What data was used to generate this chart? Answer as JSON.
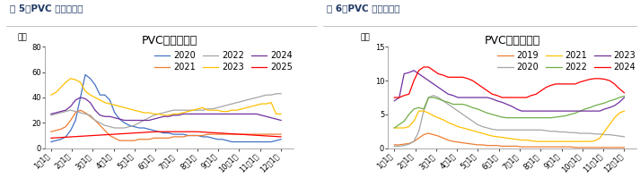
{
  "fig5_title": "PVC电石法库存",
  "fig5_header": "图 5：PVC 电石法库存",
  "fig5_ylabel": "万吨",
  "fig5_ylim": [
    0,
    80
  ],
  "fig5_yticks": [
    0,
    20,
    40,
    60,
    80
  ],
  "fig5_series": {
    "2020": {
      "color": "#4472C4",
      "data": [
        5,
        6,
        7,
        9,
        14,
        22,
        40,
        58,
        55,
        50,
        42,
        42,
        38,
        28,
        23,
        20,
        18,
        17,
        16,
        16,
        15,
        14,
        13,
        12,
        12,
        11,
        11,
        11,
        10,
        10,
        10,
        9,
        9,
        8,
        7,
        7,
        6,
        5,
        5,
        5,
        5,
        5,
        5,
        5,
        5,
        5,
        6,
        7
      ]
    },
    "2021": {
      "color": "#ED7D31",
      "data": [
        13,
        14,
        15,
        17,
        22,
        28,
        30,
        28,
        25,
        22,
        18,
        14,
        10,
        8,
        6,
        6,
        6,
        6,
        7,
        7,
        7,
        8,
        8,
        8,
        8,
        9,
        9,
        9,
        10,
        10,
        10,
        10,
        11,
        11,
        11,
        11,
        11,
        11,
        11,
        11,
        11,
        11,
        11,
        11,
        11,
        11,
        11,
        11
      ]
    },
    "2022": {
      "color": "#A5A5A5",
      "data": [
        26,
        27,
        28,
        29,
        30,
        29,
        28,
        27,
        26,
        22,
        20,
        18,
        17,
        16,
        16,
        16,
        17,
        18,
        20,
        22,
        24,
        26,
        27,
        28,
        29,
        30,
        30,
        30,
        30,
        30,
        30,
        30,
        31,
        31,
        32,
        33,
        34,
        35,
        36,
        37,
        38,
        39,
        40,
        41,
        42,
        42,
        43,
        43
      ]
    },
    "2023": {
      "color": "#FFC000",
      "data": [
        42,
        44,
        48,
        52,
        55,
        54,
        52,
        45,
        42,
        40,
        38,
        36,
        35,
        34,
        33,
        32,
        31,
        30,
        29,
        28,
        28,
        27,
        27,
        26,
        26,
        27,
        27,
        28,
        29,
        30,
        31,
        32,
        30,
        30,
        30,
        29,
        29,
        30,
        30,
        31,
        32,
        33,
        34,
        35,
        35,
        36,
        27,
        27
      ]
    },
    "2024": {
      "color": "#7030A0",
      "data": [
        27,
        28,
        29,
        30,
        33,
        38,
        40,
        39,
        36,
        30,
        26,
        25,
        25,
        24,
        23,
        22,
        22,
        22,
        22,
        22,
        22,
        23,
        24,
        25,
        25,
        26,
        26,
        27,
        27,
        27,
        27,
        27,
        27,
        27,
        27,
        27,
        27,
        27,
        27,
        27,
        27,
        27,
        27,
        26,
        25,
        24,
        23,
        22
      ]
    },
    "2025": {
      "color": "#FF0000",
      "data": [
        8,
        9,
        10,
        11,
        12,
        13,
        13,
        13,
        12,
        11,
        10,
        9
      ]
    }
  },
  "fig6_title": "PVC乙烯法库存",
  "fig6_header": "图 6：PVC 乙烯法库存",
  "fig6_ylabel": "万吨",
  "fig6_ylim": [
    0,
    15
  ],
  "fig6_yticks": [
    0,
    5,
    10,
    15
  ],
  "fig6_series": {
    "2019": {
      "color": "#ED7D31",
      "data": [
        0.5,
        0.5,
        0.6,
        0.7,
        1.0,
        1.5,
        2.0,
        2.2,
        2.0,
        1.8,
        1.5,
        1.2,
        1.0,
        0.9,
        0.8,
        0.7,
        0.6,
        0.5,
        0.5,
        0.4,
        0.4,
        0.4,
        0.3,
        0.3,
        0.3,
        0.3,
        0.2,
        0.2,
        0.2,
        0.2,
        0.2,
        0.2,
        0.2,
        0.2,
        0.2,
        0.2,
        0.2,
        0.1,
        0.1,
        0.1,
        0.1,
        0.1,
        0.1,
        0.1,
        0.1,
        0.1,
        0.1,
        0.1
      ]
    },
    "2020": {
      "color": "#A5A5A5",
      "data": [
        0.3,
        0.3,
        0.4,
        0.6,
        1.0,
        2.5,
        5.5,
        7.5,
        7.8,
        7.5,
        7.0,
        6.5,
        6.0,
        5.5,
        5.0,
        4.5,
        4.0,
        3.5,
        3.2,
        3.0,
        2.8,
        2.7,
        2.7,
        2.7,
        2.7,
        2.7,
        2.7,
        2.7,
        2.7,
        2.7,
        2.7,
        2.6,
        2.5,
        2.5,
        2.4,
        2.4,
        2.3,
        2.3,
        2.2,
        2.2,
        2.2,
        2.1,
        2.1,
        2.0,
        2.0,
        1.9,
        1.8,
        1.7
      ]
    },
    "2021": {
      "color": "#FFC000",
      "data": [
        3.0,
        3.0,
        3.0,
        3.2,
        4.0,
        5.5,
        5.5,
        5.2,
        4.8,
        4.5,
        4.2,
        3.8,
        3.5,
        3.2,
        3.0,
        2.8,
        2.6,
        2.4,
        2.2,
        2.0,
        1.8,
        1.7,
        1.6,
        1.5,
        1.4,
        1.3,
        1.2,
        1.2,
        1.1,
        1.0,
        1.0,
        1.0,
        1.0,
        1.0,
        1.0,
        1.0,
        1.0,
        1.0,
        1.0,
        1.0,
        1.0,
        1.1,
        1.5,
        2.5,
        3.5,
        4.5,
        5.2,
        5.5
      ]
    },
    "2022": {
      "color": "#70AD47",
      "data": [
        3.0,
        3.5,
        4.0,
        5.0,
        5.8,
        6.0,
        5.8,
        7.5,
        7.5,
        7.3,
        7.0,
        6.8,
        6.5,
        6.5,
        6.5,
        6.3,
        6.0,
        5.8,
        5.5,
        5.2,
        5.0,
        4.8,
        4.6,
        4.5,
        4.5,
        4.5,
        4.5,
        4.5,
        4.5,
        4.5,
        4.5,
        4.5,
        4.5,
        4.6,
        4.7,
        4.8,
        5.0,
        5.2,
        5.5,
        5.8,
        6.0,
        6.3,
        6.5,
        6.7,
        7.0,
        7.2,
        7.5,
        7.7
      ]
    },
    "2023": {
      "color": "#7030A0",
      "data": [
        7.0,
        7.5,
        11.0,
        11.2,
        11.5,
        11.0,
        10.5,
        10.0,
        9.5,
        9.0,
        8.5,
        8.0,
        7.8,
        7.5,
        7.5,
        7.5,
        7.5,
        7.5,
        7.5,
        7.5,
        7.3,
        7.0,
        6.8,
        6.5,
        6.2,
        5.8,
        5.5,
        5.5,
        5.5,
        5.5,
        5.5,
        5.5,
        5.5,
        5.5,
        5.5,
        5.5,
        5.5,
        5.5,
        5.5,
        5.5,
        5.5,
        5.5,
        5.5,
        5.8,
        6.0,
        6.3,
        6.8,
        7.5
      ]
    },
    "2024": {
      "color": "#FF0000",
      "data": [
        7.5,
        7.5,
        7.8,
        8.0,
        10.0,
        11.5,
        12.0,
        12.0,
        11.5,
        11.0,
        10.8,
        10.5,
        10.5,
        10.5,
        10.5,
        10.3,
        10.0,
        9.5,
        9.0,
        8.5,
        8.0,
        7.8,
        7.5,
        7.5,
        7.5,
        7.5,
        7.5,
        7.5,
        7.8,
        8.0,
        8.5,
        9.0,
        9.3,
        9.5,
        9.5,
        9.5,
        9.5,
        9.5,
        9.8,
        10.0,
        10.2,
        10.3,
        10.3,
        10.2,
        10.0,
        9.5,
        8.8,
        8.2
      ]
    }
  },
  "x_labels": [
    "1月1日",
    "2月1日",
    "3月1日",
    "4月1日",
    "5月1日",
    "6月1日",
    "7月1日",
    "8月1日",
    "9月1日",
    "10月1日",
    "11月1日",
    "12月1日"
  ],
  "header_color": "#1F3864",
  "header_fontsize": 7.5,
  "title_fontsize": 9,
  "legend_fontsize": 7,
  "axis_fontsize": 6,
  "ylabel_fontsize": 6.5
}
